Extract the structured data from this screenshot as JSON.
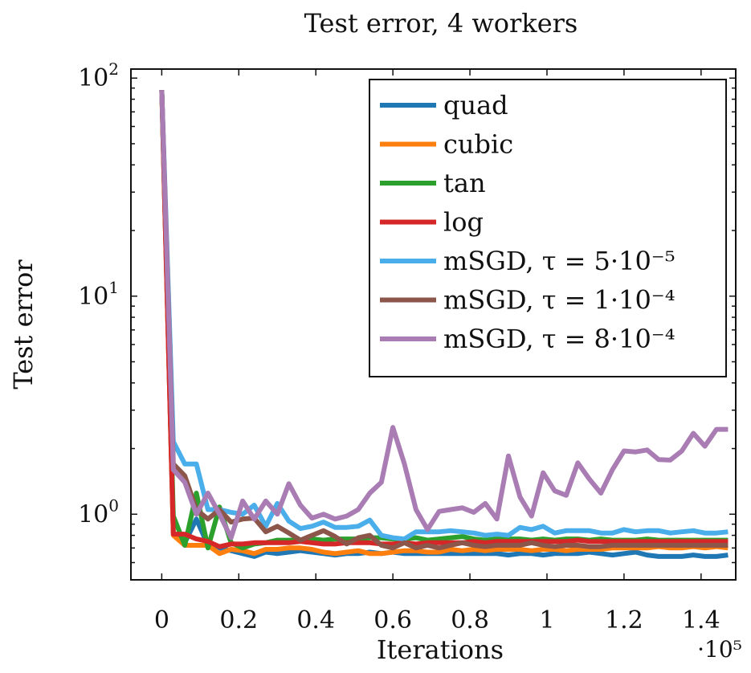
{
  "chart_data": {
    "type": "line",
    "title": "Test error, 4 workers",
    "xlabel": "Iterations",
    "ylabel": "Test error",
    "x_scale_note": "·10⁵",
    "xlim": [
      -0.08,
      1.49
    ],
    "ylim": [
      0.5,
      110
    ],
    "y_scale": "log",
    "x_ticks": [
      0,
      0.2,
      0.4,
      0.6,
      0.8,
      1,
      1.2,
      1.4
    ],
    "x_tick_labels": [
      "0",
      "0.2",
      "0.4",
      "0.6",
      "0.8",
      "1",
      "1.2",
      "1.4"
    ],
    "y_ticks": [
      1,
      10,
      100
    ],
    "y_tick_labels": [
      [
        "10",
        "0"
      ],
      [
        "10",
        "1"
      ],
      [
        "10",
        "2"
      ]
    ],
    "legend_position": "top-right",
    "series": [
      {
        "name": "quad",
        "color": "#1f77b4",
        "x": [
          0,
          0.03,
          0.06,
          0.09,
          0.12,
          0.15,
          0.18,
          0.21,
          0.24,
          0.27,
          0.3,
          0.33,
          0.36,
          0.39,
          0.42,
          0.45,
          0.48,
          0.51,
          0.54,
          0.57,
          0.6,
          0.63,
          0.66,
          0.69,
          0.72,
          0.75,
          0.78,
          0.81,
          0.84,
          0.87,
          0.9,
          0.93,
          0.96,
          0.99,
          1.02,
          1.05,
          1.08,
          1.11,
          1.14,
          1.17,
          1.2,
          1.23,
          1.26,
          1.29,
          1.32,
          1.35,
          1.38,
          1.41,
          1.44,
          1.47
        ],
        "y": [
          88,
          0.82,
          0.74,
          0.95,
          0.72,
          0.7,
          0.68,
          0.66,
          0.64,
          0.67,
          0.66,
          0.67,
          0.68,
          0.67,
          0.66,
          0.65,
          0.66,
          0.66,
          0.67,
          0.66,
          0.67,
          0.66,
          0.66,
          0.66,
          0.66,
          0.66,
          0.66,
          0.66,
          0.66,
          0.66,
          0.65,
          0.66,
          0.66,
          0.65,
          0.66,
          0.66,
          0.66,
          0.67,
          0.66,
          0.65,
          0.66,
          0.67,
          0.65,
          0.64,
          0.64,
          0.64,
          0.65,
          0.64,
          0.64,
          0.65
        ]
      },
      {
        "name": "cubic",
        "color": "#ff7f0e",
        "x": [
          0,
          0.03,
          0.06,
          0.09,
          0.12,
          0.15,
          0.18,
          0.21,
          0.24,
          0.27,
          0.3,
          0.33,
          0.36,
          0.39,
          0.42,
          0.45,
          0.48,
          0.51,
          0.54,
          0.57,
          0.6,
          0.63,
          0.66,
          0.69,
          0.72,
          0.75,
          0.78,
          0.81,
          0.84,
          0.87,
          0.9,
          0.93,
          0.96,
          0.99,
          1.02,
          1.05,
          1.08,
          1.11,
          1.14,
          1.17,
          1.2,
          1.23,
          1.26,
          1.29,
          1.32,
          1.35,
          1.38,
          1.41,
          1.44,
          1.47
        ],
        "y": [
          88,
          0.8,
          0.72,
          0.72,
          0.72,
          0.66,
          0.69,
          0.68,
          0.66,
          0.69,
          0.69,
          0.7,
          0.7,
          0.69,
          0.67,
          0.66,
          0.67,
          0.68,
          0.66,
          0.66,
          0.67,
          0.68,
          0.68,
          0.67,
          0.67,
          0.69,
          0.68,
          0.69,
          0.68,
          0.69,
          0.69,
          0.69,
          0.68,
          0.69,
          0.69,
          0.68,
          0.69,
          0.69,
          0.69,
          0.7,
          0.7,
          0.7,
          0.7,
          0.71,
          0.7,
          0.7,
          0.71,
          0.7,
          0.71,
          0.7
        ]
      },
      {
        "name": "tan",
        "color": "#2ca02c",
        "x": [
          0,
          0.03,
          0.06,
          0.09,
          0.12,
          0.15,
          0.18,
          0.21,
          0.24,
          0.27,
          0.3,
          0.33,
          0.36,
          0.39,
          0.42,
          0.45,
          0.48,
          0.51,
          0.54,
          0.57,
          0.6,
          0.63,
          0.66,
          0.69,
          0.72,
          0.75,
          0.78,
          0.81,
          0.84,
          0.87,
          0.9,
          0.93,
          0.96,
          0.99,
          1.02,
          1.05,
          1.08,
          1.11,
          1.14,
          1.17,
          1.2,
          1.23,
          1.26,
          1.29,
          1.32,
          1.35,
          1.38,
          1.41,
          1.44,
          1.47
        ],
        "y": [
          88,
          0.98,
          0.72,
          1.25,
          0.7,
          1.08,
          0.74,
          0.7,
          0.73,
          0.74,
          0.76,
          0.76,
          0.76,
          0.77,
          0.76,
          0.77,
          0.77,
          0.77,
          0.78,
          0.78,
          0.77,
          0.77,
          0.78,
          0.76,
          0.77,
          0.78,
          0.79,
          0.77,
          0.76,
          0.77,
          0.77,
          0.77,
          0.76,
          0.77,
          0.76,
          0.77,
          0.77,
          0.76,
          0.77,
          0.76,
          0.76,
          0.76,
          0.77,
          0.76,
          0.76,
          0.76,
          0.76,
          0.76,
          0.76,
          0.76
        ]
      },
      {
        "name": "log",
        "color": "#d62728",
        "x": [
          0,
          0.03,
          0.06,
          0.09,
          0.12,
          0.15,
          0.18,
          0.21,
          0.24,
          0.27,
          0.3,
          0.33,
          0.36,
          0.39,
          0.42,
          0.45,
          0.48,
          0.51,
          0.54,
          0.57,
          0.6,
          0.63,
          0.66,
          0.69,
          0.72,
          0.75,
          0.78,
          0.81,
          0.84,
          0.87,
          0.9,
          0.93,
          0.96,
          0.99,
          1.02,
          1.05,
          1.08,
          1.11,
          1.14,
          1.17,
          1.2,
          1.23,
          1.26,
          1.29,
          1.32,
          1.35,
          1.38,
          1.41,
          1.44,
          1.47
        ],
        "y": [
          88,
          0.81,
          0.81,
          0.77,
          0.75,
          0.71,
          0.73,
          0.73,
          0.74,
          0.74,
          0.74,
          0.74,
          0.75,
          0.74,
          0.73,
          0.73,
          0.74,
          0.74,
          0.74,
          0.73,
          0.73,
          0.74,
          0.73,
          0.74,
          0.74,
          0.74,
          0.74,
          0.75,
          0.74,
          0.75,
          0.75,
          0.75,
          0.75,
          0.75,
          0.75,
          0.75,
          0.76,
          0.75,
          0.75,
          0.75,
          0.75,
          0.75,
          0.75,
          0.75,
          0.75,
          0.75,
          0.75,
          0.75,
          0.75,
          0.75
        ]
      },
      {
        "name": "mSGD, τ = 5·10⁻⁵",
        "color": "#4aaeea",
        "x": [
          0,
          0.03,
          0.06,
          0.09,
          0.12,
          0.15,
          0.18,
          0.21,
          0.24,
          0.27,
          0.3,
          0.33,
          0.36,
          0.39,
          0.42,
          0.45,
          0.48,
          0.51,
          0.54,
          0.57,
          0.6,
          0.63,
          0.66,
          0.69,
          0.72,
          0.75,
          0.78,
          0.81,
          0.84,
          0.87,
          0.9,
          0.93,
          0.96,
          0.99,
          1.02,
          1.05,
          1.08,
          1.11,
          1.14,
          1.17,
          1.2,
          1.23,
          1.26,
          1.29,
          1.32,
          1.35,
          1.38,
          1.41,
          1.44,
          1.47
        ],
        "y": [
          88,
          2.15,
          1.7,
          1.7,
          1.05,
          1.05,
          1.02,
          1.0,
          1.1,
          0.88,
          1.12,
          0.93,
          0.86,
          0.88,
          0.92,
          0.87,
          0.87,
          0.88,
          0.94,
          0.8,
          0.78,
          0.77,
          0.83,
          0.83,
          0.83,
          0.84,
          0.83,
          0.82,
          0.8,
          0.81,
          0.8,
          0.87,
          0.85,
          0.88,
          0.82,
          0.84,
          0.84,
          0.84,
          0.82,
          0.82,
          0.85,
          0.83,
          0.84,
          0.84,
          0.82,
          0.83,
          0.84,
          0.82,
          0.82,
          0.83
        ]
      },
      {
        "name": "mSGD, τ = 1·10⁻⁴",
        "color": "#8c564b",
        "x": [
          0,
          0.03,
          0.06,
          0.09,
          0.12,
          0.15,
          0.18,
          0.21,
          0.24,
          0.27,
          0.3,
          0.33,
          0.36,
          0.39,
          0.42,
          0.45,
          0.48,
          0.51,
          0.54,
          0.57,
          0.6,
          0.63,
          0.66,
          0.69,
          0.72,
          0.75,
          0.78,
          0.81,
          0.84,
          0.87,
          0.9,
          0.93,
          0.96,
          0.99,
          1.02,
          1.05,
          1.08,
          1.11,
          1.14,
          1.17,
          1.2,
          1.23,
          1.26,
          1.29,
          1.32,
          1.35,
          1.38,
          1.41,
          1.44,
          1.47
        ],
        "y": [
          88,
          1.7,
          1.5,
          1.05,
          0.95,
          1.05,
          0.92,
          0.95,
          0.96,
          0.83,
          0.88,
          0.82,
          0.76,
          0.8,
          0.84,
          0.79,
          0.73,
          0.78,
          0.8,
          0.72,
          0.7,
          0.74,
          0.7,
          0.72,
          0.7,
          0.72,
          0.74,
          0.72,
          0.71,
          0.72,
          0.72,
          0.72,
          0.74,
          0.72,
          0.71,
          0.72,
          0.72,
          0.71,
          0.71,
          0.72,
          0.72,
          0.72,
          0.72,
          0.72,
          0.72,
          0.72,
          0.72,
          0.72,
          0.72,
          0.72
        ]
      },
      {
        "name": "mSGD, τ = 8·10⁻⁴",
        "color": "#a97cb4",
        "x": [
          0,
          0.03,
          0.06,
          0.09,
          0.12,
          0.15,
          0.18,
          0.21,
          0.24,
          0.27,
          0.3,
          0.33,
          0.36,
          0.39,
          0.42,
          0.45,
          0.48,
          0.51,
          0.54,
          0.57,
          0.6,
          0.63,
          0.66,
          0.69,
          0.72,
          0.75,
          0.78,
          0.81,
          0.84,
          0.87,
          0.9,
          0.93,
          0.96,
          0.99,
          1.02,
          1.05,
          1.08,
          1.11,
          1.14,
          1.17,
          1.2,
          1.23,
          1.26,
          1.29,
          1.32,
          1.35,
          1.38,
          1.41,
          1.44,
          1.47
        ],
        "y": [
          88,
          1.6,
          1.4,
          1.0,
          1.25,
          1.0,
          0.78,
          1.15,
          0.95,
          1.15,
          1.0,
          1.38,
          1.1,
          0.96,
          1.0,
          0.95,
          0.98,
          1.05,
          1.25,
          1.4,
          2.5,
          1.7,
          1.05,
          0.85,
          1.03,
          1.05,
          1.07,
          1.02,
          1.12,
          0.95,
          1.85,
          1.2,
          0.98,
          1.55,
          1.28,
          1.22,
          1.72,
          1.45,
          1.25,
          1.6,
          1.95,
          1.93,
          1.97,
          1.78,
          1.77,
          1.95,
          2.35,
          2.05,
          2.45,
          2.45
        ]
      }
    ]
  }
}
